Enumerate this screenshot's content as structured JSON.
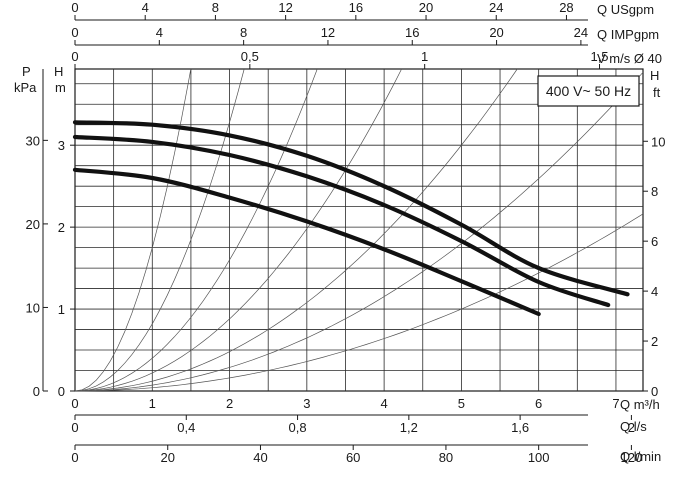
{
  "chart_data": {
    "type": "line",
    "badge": "400 V~ 50 Hz",
    "x_flow_m3h": {
      "unit_label": "Q m³/h",
      "range": [
        0,
        7.35
      ],
      "ticks": [
        0,
        1,
        2,
        3,
        4,
        5,
        6,
        7
      ]
    },
    "y_head_m": {
      "unit_label_top": "H",
      "unit_label_bottom": "m",
      "range": [
        0,
        3.93
      ],
      "ticks": [
        0,
        1,
        2,
        3
      ]
    },
    "y_pressure_kpa": {
      "unit_label_top": "P",
      "unit_label_bottom": "kPa",
      "ticks": [
        0,
        10,
        20,
        30
      ]
    },
    "y_head_ft": {
      "unit_label_top": "H",
      "unit_label_bottom": "ft",
      "ticks": [
        0,
        2,
        4,
        6,
        8,
        10
      ]
    },
    "top_axes": [
      {
        "label": "Q USgpm",
        "factor": 4.4029,
        "ticks": [
          "0",
          "4",
          "8",
          "12",
          "16",
          "20",
          "24",
          "28"
        ],
        "values": [
          0,
          4,
          8,
          12,
          16,
          20,
          24,
          28
        ]
      },
      {
        "label": "Q IMPgpm",
        "factor": 3.6662,
        "ticks": [
          "0",
          "4",
          "8",
          "12",
          "16",
          "20",
          "24"
        ],
        "values": [
          0,
          4,
          8,
          12,
          16,
          20,
          24
        ]
      },
      {
        "label": "V m/s Ø 40",
        "factor": 0.221,
        "ticks": [
          "0",
          "0,5",
          "1",
          "1,5"
        ],
        "values": [
          0,
          0.5,
          1,
          1.5
        ]
      }
    ],
    "bottom_axes": [
      {
        "label": "Q l/s",
        "factor": 0.27778,
        "ticks": [
          "0",
          "0,4",
          "0,8",
          "1,2",
          "1,6",
          "2"
        ],
        "values": [
          0,
          0.4,
          0.8,
          1.2,
          1.6,
          2
        ]
      },
      {
        "label": "Q l/min",
        "factor": 16.667,
        "ticks": [
          "0",
          "20",
          "40",
          "60",
          "80",
          "100",
          "120"
        ],
        "values": [
          0,
          20,
          40,
          60,
          80,
          100,
          120
        ]
      }
    ],
    "series": [
      {
        "points": [
          [
            0,
            3.28
          ],
          [
            1,
            3.25
          ],
          [
            2,
            3.12
          ],
          [
            3,
            2.87
          ],
          [
            4,
            2.5
          ],
          [
            5,
            2.03
          ],
          [
            6,
            1.5
          ],
          [
            7.15,
            1.18
          ]
        ]
      },
      {
        "points": [
          [
            0,
            3.1
          ],
          [
            1,
            3.04
          ],
          [
            2,
            2.88
          ],
          [
            3,
            2.62
          ],
          [
            4,
            2.27
          ],
          [
            5,
            1.83
          ],
          [
            6,
            1.33
          ],
          [
            6.9,
            1.05
          ]
        ]
      },
      {
        "points": [
          [
            0,
            2.7
          ],
          [
            1,
            2.6
          ],
          [
            2,
            2.36
          ],
          [
            3,
            2.07
          ],
          [
            4,
            1.73
          ],
          [
            5,
            1.34
          ],
          [
            6,
            0.94
          ]
        ]
      }
    ],
    "system_curves_k": [
      1.75,
      0.82,
      0.4,
      0.22,
      0.12,
      0.072,
      0.04
    ],
    "grid": true
  }
}
